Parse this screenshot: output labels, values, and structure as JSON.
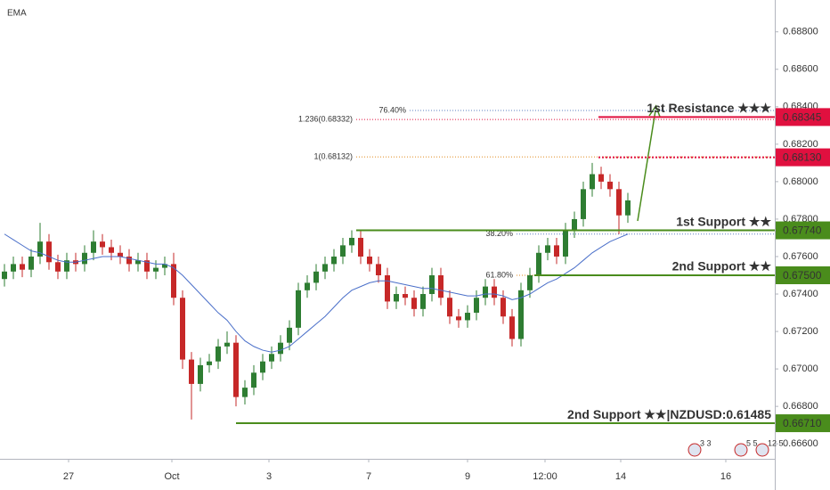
{
  "chart_data": {
    "type": "candlestick",
    "title": "EMA",
    "up_color": "#2e7d32",
    "down_color": "#c62828",
    "ema_color": "#4a6fc9",
    "xlim": [
      -0.5,
      86.5
    ],
    "xticks": [
      {
        "value": 7.2,
        "label": "27"
      },
      {
        "value": 18.8,
        "label": "Oct"
      },
      {
        "value": 29.7,
        "label": "3"
      },
      {
        "value": 40.9,
        "label": "7"
      },
      {
        "value": 52,
        "label": "9"
      },
      {
        "value": 60.7,
        "label": "12:00"
      },
      {
        "value": 69.2,
        "label": "14"
      },
      {
        "value": 81,
        "label": "16"
      }
    ],
    "ylim": [
      0.6652,
      0.6897
    ],
    "yticks": [
      {
        "value": 0.688,
        "label": "0.68800"
      },
      {
        "value": 0.686,
        "label": "0.68600"
      },
      {
        "value": 0.684,
        "label": "0.68400"
      },
      {
        "value": 0.682,
        "label": "0.68200"
      },
      {
        "value": 0.68,
        "label": "0.68000"
      },
      {
        "value": 0.678,
        "label": "0.67800"
      },
      {
        "value": 0.676,
        "label": "0.67600"
      },
      {
        "value": 0.674,
        "label": "0.67400"
      },
      {
        "value": 0.672,
        "label": "0.67200"
      },
      {
        "value": 0.67,
        "label": "0.67000"
      },
      {
        "value": 0.668,
        "label": "0.66800"
      },
      {
        "value": 0.666,
        "label": "0.66600"
      }
    ],
    "open": [
      0.6748,
      0.6752,
      0.6756,
      0.6753,
      0.676,
      0.6768,
      0.6757,
      0.6752,
      0.6758,
      0.6756,
      0.6762,
      0.6768,
      0.6765,
      0.6762,
      0.676,
      0.6756,
      0.6758,
      0.6752,
      0.6754,
      0.6756,
      0.6738,
      0.6705,
      0.6692,
      0.6702,
      0.6704,
      0.6712,
      0.6714,
      0.6685,
      0.669,
      0.6698,
      0.6704,
      0.6708,
      0.6714,
      0.6722,
      0.6742,
      0.6746,
      0.6752,
      0.6756,
      0.676,
      0.6766,
      0.677,
      0.676,
      0.6756,
      0.675,
      0.6736,
      0.674,
      0.6738,
      0.6732,
      0.674,
      0.675,
      0.6738,
      0.6728,
      0.6726,
      0.673,
      0.6738,
      0.6744,
      0.6738,
      0.6728,
      0.6716,
      0.6742,
      0.675,
      0.6762,
      0.6766,
      0.676,
      0.6774,
      0.678,
      0.6796,
      0.6804,
      0.68,
      0.6796,
      0.6782
    ],
    "high": [
      0.6756,
      0.676,
      0.676,
      0.6764,
      0.6778,
      0.6772,
      0.6761,
      0.6762,
      0.6762,
      0.6766,
      0.6774,
      0.6772,
      0.6769,
      0.6766,
      0.6764,
      0.6762,
      0.6762,
      0.6758,
      0.676,
      0.6762,
      0.6742,
      0.6709,
      0.6706,
      0.6708,
      0.6716,
      0.672,
      0.6718,
      0.6694,
      0.6702,
      0.6708,
      0.6712,
      0.6718,
      0.6726,
      0.6746,
      0.675,
      0.6756,
      0.676,
      0.6764,
      0.677,
      0.6774,
      0.6774,
      0.6764,
      0.676,
      0.6754,
      0.6744,
      0.6744,
      0.6742,
      0.6744,
      0.6754,
      0.6754,
      0.6742,
      0.6732,
      0.6734,
      0.6742,
      0.6748,
      0.6748,
      0.6742,
      0.6732,
      0.6746,
      0.6754,
      0.6766,
      0.677,
      0.677,
      0.6778,
      0.6784,
      0.68,
      0.681,
      0.6808,
      0.6804,
      0.68,
      0.6794
    ],
    "low": [
      0.6744,
      0.6748,
      0.6749,
      0.6749,
      0.6756,
      0.6753,
      0.6748,
      0.6748,
      0.6752,
      0.6752,
      0.6758,
      0.6761,
      0.6758,
      0.6756,
      0.6752,
      0.6752,
      0.6748,
      0.6748,
      0.675,
      0.6734,
      0.67,
      0.6673,
      0.6688,
      0.6698,
      0.67,
      0.6708,
      0.668,
      0.6681,
      0.6686,
      0.6694,
      0.67,
      0.6704,
      0.671,
      0.6718,
      0.6738,
      0.6742,
      0.6748,
      0.6752,
      0.6756,
      0.6762,
      0.6756,
      0.6752,
      0.6746,
      0.6732,
      0.6732,
      0.6734,
      0.6728,
      0.6728,
      0.6736,
      0.6734,
      0.6724,
      0.6722,
      0.6722,
      0.6726,
      0.6734,
      0.6734,
      0.6724,
      0.6712,
      0.6712,
      0.6738,
      0.6746,
      0.6758,
      0.6756,
      0.6756,
      0.677,
      0.6776,
      0.6792,
      0.6796,
      0.6792,
      0.6772,
      0.6778
    ],
    "close": [
      0.6752,
      0.6756,
      0.6753,
      0.676,
      0.6768,
      0.6757,
      0.6752,
      0.6758,
      0.6756,
      0.6762,
      0.6768,
      0.6765,
      0.6762,
      0.676,
      0.6756,
      0.6758,
      0.6752,
      0.6754,
      0.6756,
      0.6738,
      0.6705,
      0.6692,
      0.6702,
      0.6704,
      0.6712,
      0.6714,
      0.6685,
      0.669,
      0.6698,
      0.6704,
      0.6708,
      0.6714,
      0.6722,
      0.6742,
      0.6746,
      0.6752,
      0.6756,
      0.676,
      0.6766,
      0.677,
      0.676,
      0.6756,
      0.675,
      0.6736,
      0.674,
      0.6738,
      0.6732,
      0.674,
      0.675,
      0.6738,
      0.6728,
      0.6726,
      0.673,
      0.6738,
      0.6744,
      0.6738,
      0.6728,
      0.6716,
      0.6742,
      0.675,
      0.6762,
      0.6766,
      0.676,
      0.6774,
      0.678,
      0.6796,
      0.6804,
      0.68,
      0.6796,
      0.6782,
      0.679
    ],
    "ema": [
      0.6772,
      0.6769,
      0.6766,
      0.6763,
      0.6762,
      0.676,
      0.6758,
      0.6757,
      0.6757,
      0.6758,
      0.6759,
      0.676,
      0.676,
      0.676,
      0.6759,
      0.6758,
      0.6757,
      0.6756,
      0.6756,
      0.6754,
      0.675,
      0.6745,
      0.674,
      0.6735,
      0.673,
      0.6726,
      0.672,
      0.6715,
      0.6712,
      0.671,
      0.6709,
      0.671,
      0.6712,
      0.6716,
      0.672,
      0.6724,
      0.6728,
      0.6733,
      0.6738,
      0.6742,
      0.6744,
      0.6746,
      0.6747,
      0.6747,
      0.6746,
      0.6745,
      0.6744,
      0.6743,
      0.6743,
      0.6742,
      0.6741,
      0.674,
      0.6739,
      0.6739,
      0.674,
      0.674,
      0.6739,
      0.6737,
      0.6738,
      0.674,
      0.6743,
      0.6746,
      0.6748,
      0.6751,
      0.6754,
      0.6758,
      0.6762,
      0.6765,
      0.6768,
      0.677,
      0.6772
    ],
    "levels": [
      {
        "name": "1st Resistance ★★★",
        "price": 0.68345,
        "price_label": "0.68345",
        "start": 66.7,
        "color": "#e0103f",
        "dash": false
      },
      {
        "name": null,
        "price": 0.6813,
        "price_label": "0.68130",
        "start": 66.7,
        "color": "#e0103f",
        "dash": true
      },
      {
        "name": "1st Support ★★",
        "price": 0.6774,
        "price_label": "0.67740",
        "start": 39.5,
        "color": "#4a8c1c",
        "dash": false
      },
      {
        "name": "2nd Support ★★",
        "price": 0.675,
        "price_label": "0.67500",
        "start": 59.5,
        "color": "#4a8c1c",
        "dash": false
      },
      {
        "name": "2nd Support ★★|NZDUSD:0.61485",
        "price": 0.6671,
        "price_label": "0.66710",
        "start": 26,
        "color": "#4a8c1c",
        "dash": false
      }
    ],
    "fib": [
      {
        "label": "76.40%",
        "price": 0.6838,
        "start": 45.5,
        "color": "#5b7fc2"
      },
      {
        "label": "1.236(0.68332)",
        "price": 0.68332,
        "start": 39.5,
        "color": "#e0103f"
      },
      {
        "label": "1(0.68132)",
        "price": 0.68132,
        "start": 39.5,
        "color": "#e08a1e"
      },
      {
        "label": "38.20%",
        "price": 0.6772,
        "start": 57.5,
        "color": "#5b7fc2"
      },
      {
        "label": "61.80%",
        "price": 0.675,
        "start": 57.5,
        "color": "#e08a1e"
      }
    ],
    "event_badges": [
      "3 3",
      "5 5",
      "12 5"
    ]
  }
}
